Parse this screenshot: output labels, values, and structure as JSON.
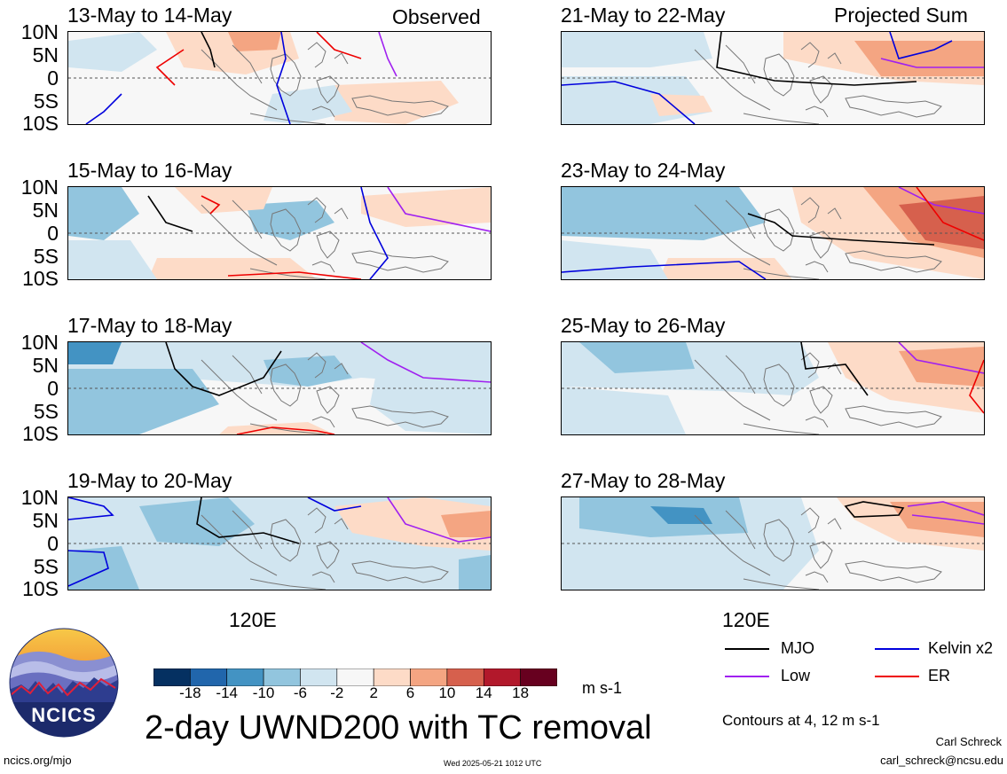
{
  "panels": {
    "observed_label": "Observed",
    "projected_label": "Projected Sum",
    "left": [
      {
        "title": "13-May to 14-May"
      },
      {
        "title": "15-May to 16-May"
      },
      {
        "title": "17-May to 18-May"
      },
      {
        "title": "19-May to 20-May"
      }
    ],
    "right": [
      {
        "title": "21-May to 22-May"
      },
      {
        "title": "23-May to 24-May"
      },
      {
        "title": "25-May to 26-May"
      },
      {
        "title": "27-May to 28-May"
      }
    ]
  },
  "axes": {
    "lat_labels": [
      "10N",
      "5N",
      "0",
      "5S",
      "10S"
    ],
    "lon_label": "120E"
  },
  "colorbar": {
    "ticks": [
      "-18",
      "-14",
      "-10",
      "-6",
      "-2",
      "2",
      "6",
      "10",
      "14",
      "18"
    ],
    "colors": [
      "#053061",
      "#2166ac",
      "#4393c3",
      "#92c5de",
      "#d1e5f0",
      "#f7f7f7",
      "#fddbc7",
      "#f4a582",
      "#d6604d",
      "#b2182b",
      "#67001f"
    ],
    "units": "m s-1"
  },
  "legend": {
    "mjo": {
      "label": "MJO",
      "color": "#000000"
    },
    "kelvin": {
      "label": "Kelvin x2",
      "color": "#0000dd"
    },
    "low": {
      "label": "Low",
      "color": "#a020f0"
    },
    "er": {
      "label": "ER",
      "color": "#ee0000"
    },
    "contours_note": "Contours at 4, 12 m s-1"
  },
  "main_title": "2-day UWND200 with TC removal",
  "logo": {
    "text": "NCICS"
  },
  "footer": {
    "url": "ncics.org/mjo",
    "timestamp": "Wed 2025-05-21 1012 UTC",
    "author": "Carl Schreck",
    "email": "carl_schreck@ncsu.edu"
  }
}
